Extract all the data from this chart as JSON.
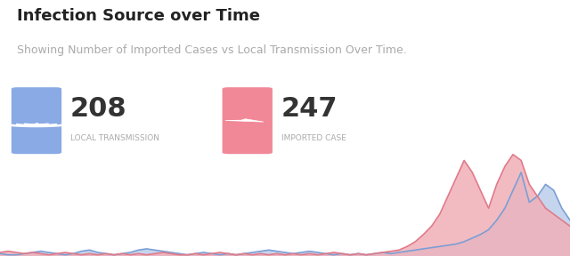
{
  "title": "Infection Source over Time",
  "subtitle": "Showing Number of Imported Cases vs Local Transmission Over Time.",
  "local_count": 208,
  "imported_count": 247,
  "local_label": "LOCAL TRANSMISSION",
  "imported_label": "IMPORTED CASE",
  "local_color": "#7b9fd4",
  "local_fill": "#c5d5ee",
  "imported_color": "#e07b8a",
  "imported_fill": "#f0b0b8",
  "local_icon_bg": "#8aaae5",
  "imported_icon_bg": "#f08898",
  "bg_color": "#ffffff",
  "title_color": "#222222",
  "subtitle_color": "#aaaaaa",
  "label_color": "#aaaaaa",
  "count_color": "#333333",
  "local_data": [
    2,
    1,
    1,
    2,
    3,
    4,
    3,
    2,
    1,
    2,
    4,
    5,
    3,
    2,
    1,
    2,
    3,
    5,
    6,
    5,
    4,
    3,
    2,
    1,
    2,
    3,
    2,
    1,
    2,
    1,
    2,
    3,
    4,
    5,
    4,
    3,
    2,
    3,
    4,
    3,
    2,
    1,
    2,
    1,
    2,
    1,
    2,
    3,
    2,
    3,
    4,
    5,
    6,
    7,
    8,
    9,
    10,
    12,
    15,
    18,
    22,
    30,
    40,
    55,
    70,
    45,
    50,
    60,
    55,
    40,
    30
  ],
  "imported_data": [
    3,
    4,
    3,
    2,
    3,
    2,
    1,
    2,
    3,
    2,
    1,
    2,
    1,
    2,
    1,
    2,
    1,
    2,
    1,
    2,
    3,
    2,
    1,
    1,
    2,
    1,
    2,
    3,
    2,
    1,
    2,
    1,
    2,
    1,
    2,
    1,
    2,
    1,
    2,
    1,
    2,
    3,
    2,
    1,
    2,
    1,
    2,
    3,
    4,
    5,
    8,
    12,
    18,
    25,
    35,
    50,
    65,
    80,
    70,
    55,
    40,
    60,
    75,
    85,
    80,
    60,
    50,
    40,
    35,
    30,
    25
  ],
  "ylim_max": 90
}
